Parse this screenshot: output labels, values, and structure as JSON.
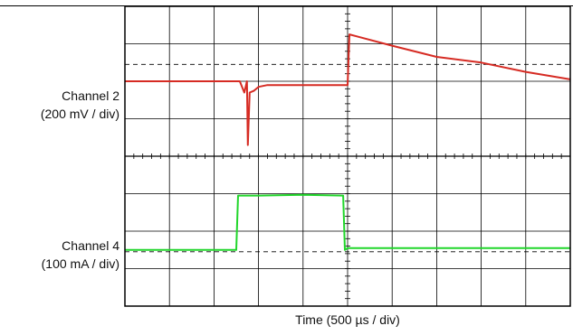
{
  "chart_data": {
    "type": "line",
    "title": "",
    "xlabel": "Time (500 µs / div)",
    "x_units": "µs",
    "x_per_division": 500,
    "x_divisions": 10,
    "xlim": [
      0,
      5000
    ],
    "grid": true,
    "legend": "none",
    "channels": [
      {
        "label": "Channel 2",
        "scale": "(200 mV / div)",
        "color": "#d62b23",
        "x": [
          0,
          250,
          500,
          1000,
          1290,
          1340,
          1370,
          1380,
          1400,
          1450,
          1500,
          1600,
          2000,
          2500,
          2520,
          2600,
          3000,
          3500,
          4000,
          4500,
          5000
        ],
        "y_div": [
          0.0,
          0.0,
          0.0,
          0.0,
          0.0,
          -0.3,
          0.0,
          -1.7,
          -0.3,
          -0.25,
          -0.15,
          -0.1,
          -0.1,
          -0.1,
          1.25,
          1.2,
          0.95,
          0.65,
          0.5,
          0.25,
          0.05
        ]
      },
      {
        "label": "Channel 4",
        "scale": "(100 mA / div)",
        "color": "#21d62b",
        "x": [
          0,
          500,
          1000,
          1250,
          1270,
          1500,
          2000,
          2450,
          2470,
          2500,
          3000,
          4000,
          5000
        ],
        "y_div": [
          -0.5,
          -0.5,
          -0.5,
          -0.5,
          0.95,
          0.95,
          0.97,
          0.95,
          -0.5,
          -0.45,
          -0.45,
          -0.45,
          -0.45
        ]
      }
    ]
  }
}
